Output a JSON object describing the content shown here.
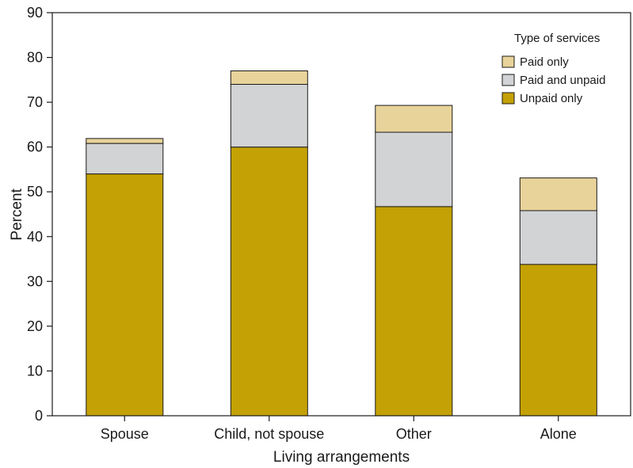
{
  "chart_data": {
    "type": "bar",
    "stacked": true,
    "categories": [
      "Spouse",
      "Child, not spouse",
      "Other",
      "Alone"
    ],
    "series": [
      {
        "name": "Unpaid only",
        "color": "#c4a105",
        "values": [
          54.0,
          60.0,
          46.7,
          33.8
        ]
      },
      {
        "name": "Paid and unpaid",
        "color": "#d2d3d5",
        "values": [
          6.8,
          14.0,
          16.6,
          12.0
        ]
      },
      {
        "name": "Paid only",
        "color": "#e8d39a",
        "values": [
          1.1,
          3.0,
          6.0,
          7.3
        ]
      }
    ],
    "xlabel": "Living arrangements",
    "ylabel": "Percent",
    "ylim": [
      0,
      90
    ],
    "yticks": [
      "0",
      "10",
      "20",
      "30",
      "40",
      "50",
      "60",
      "70",
      "80",
      "90"
    ],
    "legend": {
      "title": "Type of services",
      "position": "top-right",
      "entries": [
        "Paid only",
        "Paid and unpaid",
        "Unpaid only"
      ]
    },
    "grid": false
  }
}
